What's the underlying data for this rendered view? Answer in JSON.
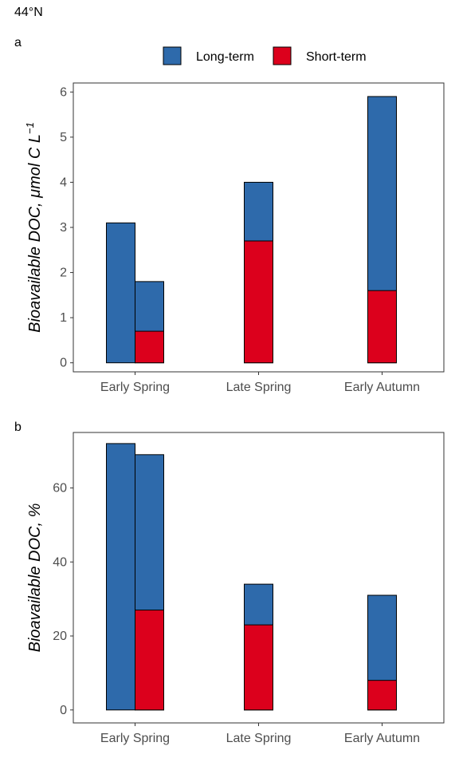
{
  "figure_title": "44°N",
  "colors": {
    "long_term": "#2e6aab",
    "short_term": "#dc001c",
    "bar_outline": "#000000",
    "tick_text": "#4d4d4d"
  },
  "legend": {
    "position": "top",
    "items": [
      "Long-term",
      "Short-term"
    ]
  },
  "chart_data": [
    {
      "panel": "a",
      "type": "bar",
      "stacked": true,
      "categories": [
        "Early Spring",
        "Late Spring",
        "Early Autumn"
      ],
      "ylabel_main": "Bioavailable DOC, ",
      "ylabel_unit": "μmol C L",
      "ylabel_exp": "−1",
      "ylim": [
        -0.2,
        6.2
      ],
      "yticks": [
        0,
        1,
        2,
        3,
        4,
        5,
        6
      ],
      "grid": false,
      "bars": [
        {
          "category": "Early Spring",
          "slot": "left",
          "long_term_total": 3.1,
          "short_term": 0
        },
        {
          "category": "Early Spring",
          "slot": "right",
          "long_term_total": 1.8,
          "short_term": 0.7
        },
        {
          "category": "Late Spring",
          "slot": "center",
          "long_term_total": 4.0,
          "short_term": 2.7
        },
        {
          "category": "Early Autumn",
          "slot": "center",
          "long_term_total": 5.9,
          "short_term": 1.6
        }
      ]
    },
    {
      "panel": "b",
      "type": "bar",
      "stacked": true,
      "categories": [
        "Early Spring",
        "Late Spring",
        "Early Autumn"
      ],
      "ylabel_main": "Bioavailable DOC, %",
      "ylabel_unit": "",
      "ylabel_exp": "",
      "ylim": [
        -3.5,
        75
      ],
      "yticks": [
        0,
        20,
        40,
        60
      ],
      "grid": false,
      "bars": [
        {
          "category": "Early Spring",
          "slot": "left",
          "long_term_total": 72,
          "short_term": 0
        },
        {
          "category": "Early Spring",
          "slot": "right",
          "long_term_total": 69,
          "short_term": 27
        },
        {
          "category": "Late Spring",
          "slot": "center",
          "long_term_total": 34,
          "short_term": 23
        },
        {
          "category": "Early Autumn",
          "slot": "center",
          "long_term_total": 31,
          "short_term": 8
        }
      ]
    }
  ]
}
